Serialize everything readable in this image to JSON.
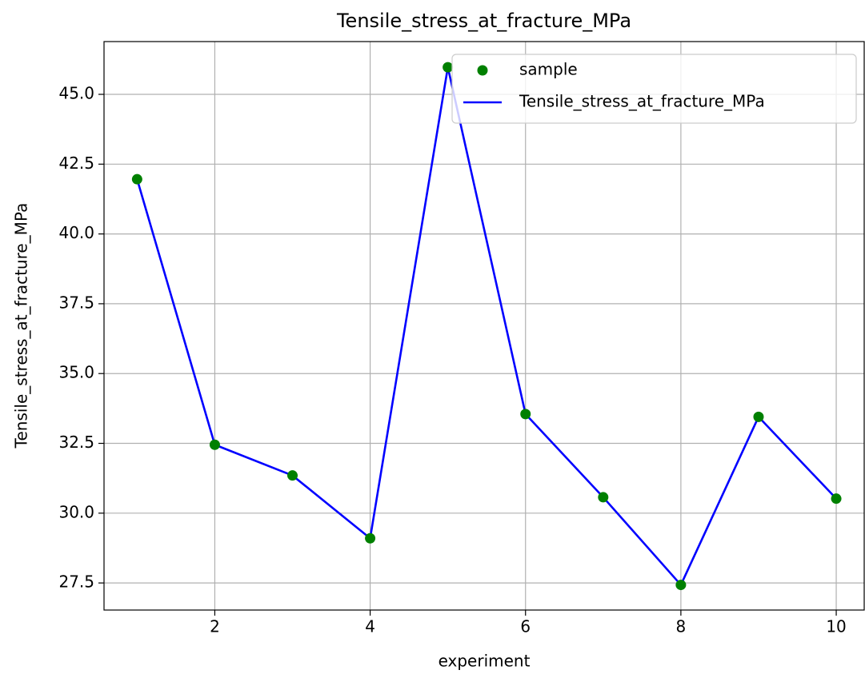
{
  "chart_data": {
    "type": "line",
    "title": "Tensile_stress_at_fracture_MPa",
    "xlabel": "experiment",
    "ylabel": "Tensile_stress_at_fracture_MPa",
    "x": [
      1,
      2,
      3,
      4,
      5,
      6,
      7,
      8,
      9,
      10
    ],
    "series": [
      {
        "name": "sample",
        "type": "scatter",
        "color": "green",
        "values": [
          41.96,
          32.45,
          31.35,
          29.1,
          45.97,
          33.55,
          30.57,
          27.43,
          33.45,
          30.52
        ]
      },
      {
        "name": "Tensile_stress_at_fracture_MPa",
        "type": "line",
        "color": "blue",
        "values": [
          41.96,
          32.45,
          31.35,
          29.1,
          45.97,
          33.55,
          30.57,
          27.43,
          33.45,
          30.52
        ]
      }
    ],
    "xlim": [
      0.574,
      10.36
    ],
    "ylim": [
      26.53,
      46.89
    ],
    "xticks": [
      2,
      4,
      6,
      8,
      10
    ],
    "yticks": [
      27.5,
      {
        "value": 30,
        "label": "30.0"
      },
      32.5,
      {
        "value": 35,
        "label": "35.0"
      },
      37.5,
      {
        "value": 40,
        "label": "40.0"
      },
      42.5,
      {
        "value": 45,
        "label": "45.0"
      }
    ],
    "grid": true,
    "legend": "upper right"
  }
}
